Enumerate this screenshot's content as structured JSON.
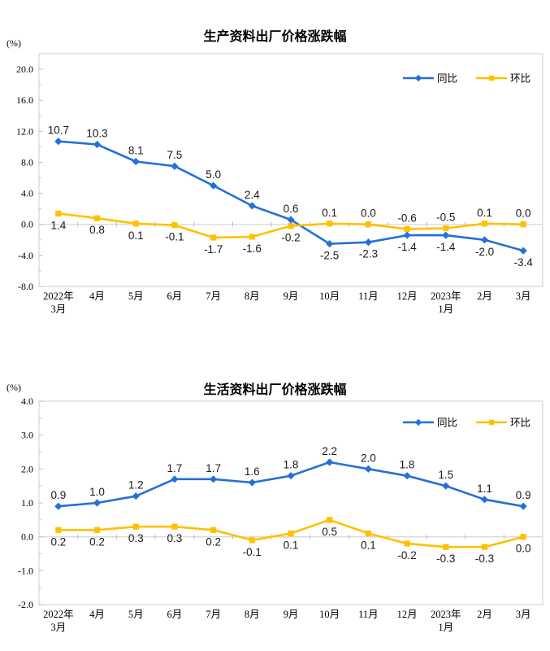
{
  "colors": {
    "tongbi_blue": "#2470D6",
    "huanbi_yellow": "#FFC000",
    "plot_border": "#D9D9D9",
    "zero_line": "#D9D9D9",
    "tick": "#BFBFBF",
    "data_label": "#1a1a1a"
  },
  "chart_data": [
    {
      "type": "line",
      "title": "生产资料出厂价格涨跌幅",
      "unit": "(%)",
      "grid": "zero-line-only",
      "legend_position": "top-right-inside",
      "categories": [
        [
          "2022年",
          "3月"
        ],
        [
          "4月"
        ],
        [
          "5月"
        ],
        [
          "6月"
        ],
        [
          "7月"
        ],
        [
          "8月"
        ],
        [
          "9月"
        ],
        [
          "10月"
        ],
        [
          "11月"
        ],
        [
          "12月"
        ],
        [
          "2023年",
          "1月"
        ],
        [
          "2月"
        ],
        [
          "3月"
        ]
      ],
      "ylim": [
        -8,
        22
      ],
      "yticks": [
        "20.0",
        "16.0",
        "12.0",
        "8.0",
        "4.0",
        "0.0",
        "-4.0",
        "-8.0"
      ],
      "minor_tick_step": 2,
      "series": [
        {
          "name": "同比",
          "color": "#2470D6",
          "marker": "diamond",
          "values": [
            10.7,
            10.3,
            8.1,
            7.5,
            5.0,
            2.4,
            0.6,
            -2.5,
            -2.3,
            -1.4,
            -1.4,
            -2.0,
            -3.4
          ],
          "labels": [
            "10.7",
            "10.3",
            "8.1",
            "7.5",
            "5.0",
            "2.4",
            "0.6",
            "-2.5",
            "-2.3",
            "-1.4",
            "-1.4",
            "-2.0",
            "-3.4"
          ],
          "label_side": [
            "above",
            "above",
            "above",
            "above",
            "above",
            "above",
            "above",
            "below",
            "below",
            "below",
            "below",
            "below",
            "below"
          ]
        },
        {
          "name": "环比",
          "color": "#FFC000",
          "marker": "square",
          "values": [
            1.4,
            0.8,
            0.1,
            -0.1,
            -1.7,
            -1.6,
            -0.2,
            0.1,
            0.0,
            -0.6,
            -0.5,
            0.1,
            0.0
          ],
          "labels": [
            "1.4",
            "0.8",
            "0.1",
            "-0.1",
            "-1.7",
            "-1.6",
            "-0.2",
            "0.1",
            "0.0",
            "-0.6",
            "-0.5",
            "0.1",
            "0.0"
          ],
          "label_side": [
            "below",
            "below",
            "below",
            "below",
            "below",
            "below",
            "below",
            "above",
            "above",
            "above",
            "above",
            "above",
            "above"
          ]
        }
      ]
    },
    {
      "type": "line",
      "title": "生活资料出厂价格涨跌幅",
      "unit": "(%)",
      "grid": "zero-line-only",
      "legend_position": "top-right-inside",
      "categories": [
        [
          "2022年",
          "3月"
        ],
        [
          "4月"
        ],
        [
          "5月"
        ],
        [
          "6月"
        ],
        [
          "7月"
        ],
        [
          "8月"
        ],
        [
          "9月"
        ],
        [
          "10月"
        ],
        [
          "11月"
        ],
        [
          "12月"
        ],
        [
          "2023年",
          "1月"
        ],
        [
          "2月"
        ],
        [
          "3月"
        ]
      ],
      "ylim": [
        -2,
        4
      ],
      "yticks": [
        "4.0",
        "3.0",
        "2.0",
        "1.0",
        "0.0",
        "-1.0",
        "-2.0"
      ],
      "minor_tick_step": 0.5,
      "series": [
        {
          "name": "同比",
          "color": "#2470D6",
          "marker": "diamond",
          "values": [
            0.9,
            1.0,
            1.2,
            1.7,
            1.7,
            1.6,
            1.8,
            2.2,
            2.0,
            1.8,
            1.5,
            1.1,
            0.9
          ],
          "labels": [
            "0.9",
            "1.0",
            "1.2",
            "1.7",
            "1.7",
            "1.6",
            "1.8",
            "2.2",
            "2.0",
            "1.8",
            "1.5",
            "1.1",
            "0.9"
          ],
          "label_side": [
            "above",
            "above",
            "above",
            "above",
            "above",
            "above",
            "above",
            "above",
            "above",
            "above",
            "above",
            "above",
            "above"
          ]
        },
        {
          "name": "环比",
          "color": "#FFC000",
          "marker": "square",
          "values": [
            0.2,
            0.2,
            0.3,
            0.3,
            0.2,
            -0.1,
            0.1,
            0.5,
            0.1,
            -0.2,
            -0.3,
            -0.3,
            0.0
          ],
          "labels": [
            "0.2",
            "0.2",
            "0.3",
            "0.3",
            "0.2",
            "-0.1",
            "0.1",
            "0.5",
            "0.1",
            "-0.2",
            "-0.3",
            "-0.3",
            "0.0"
          ],
          "label_side": [
            "below",
            "below",
            "below",
            "below",
            "below",
            "below",
            "below",
            "below",
            "below",
            "below",
            "below",
            "below",
            "below"
          ]
        }
      ]
    }
  ]
}
